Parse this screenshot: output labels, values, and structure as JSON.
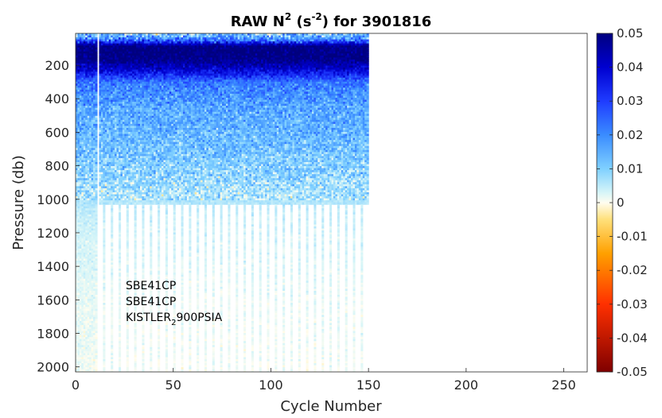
{
  "chart_data": {
    "type": "heatmap",
    "title": {
      "prefix": "RAW N",
      "superscript": "2",
      "unit_open": " (s",
      "unit_superscript": "-2",
      "suffix": ") for 3901816"
    },
    "xlabel": "Cycle Number",
    "ylabel": "Pressure (db)",
    "xlim": [
      0,
      262
    ],
    "ylim": [
      2030,
      10
    ],
    "y_reversed": true,
    "xticks": [
      0,
      50,
      100,
      150,
      200,
      250
    ],
    "yticks": [
      200,
      400,
      600,
      800,
      1000,
      1200,
      1400,
      1600,
      1800,
      2000
    ],
    "colorbar": {
      "min": -0.05,
      "max": 0.05,
      "ticks": [
        0.05,
        0.04,
        0.03,
        0.02,
        0.01,
        0,
        -0.01,
        -0.02,
        -0.03,
        -0.04,
        -0.05
      ],
      "tick_labels": [
        "0.05",
        "0.04",
        "0.03",
        "0.02",
        "0.01",
        "0",
        "-0.01",
        "-0.02",
        "-0.03",
        "-0.04",
        "-0.05"
      ],
      "colormap": "jet-white-center",
      "placement": "right"
    },
    "data_extent": {
      "cycles": [
        1,
        150
      ],
      "shallow_profile_max_pressure": 1020,
      "early_cycles_max_pressure": 2030,
      "early_cycles_range": [
        5,
        11
      ],
      "gap_cycle": 12,
      "deep_profile_spacing_cycles": 4,
      "deep_profile_start_cycle": 15
    },
    "depth_profile": [
      {
        "p": 10,
        "mean": 0.012
      },
      {
        "p": 40,
        "mean": 0.02
      },
      {
        "p": 80,
        "mean": 0.05
      },
      {
        "p": 150,
        "mean": 0.05
      },
      {
        "p": 220,
        "mean": 0.04
      },
      {
        "p": 300,
        "mean": 0.022
      },
      {
        "p": 450,
        "mean": 0.016
      },
      {
        "p": 650,
        "mean": 0.013
      },
      {
        "p": 900,
        "mean": 0.008
      },
      {
        "p": 1100,
        "mean": 0.004
      },
      {
        "p": 1500,
        "mean": 0.002
      },
      {
        "p": 2030,
        "mean": 0.001
      }
    ],
    "annotations": [
      {
        "text": "SBE41CP"
      },
      {
        "text": "SBE41CP"
      },
      {
        "text": "KISTLER",
        "subscript": "2",
        "text_after": "900PSIA"
      }
    ]
  }
}
